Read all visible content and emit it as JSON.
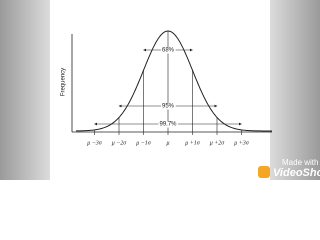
{
  "diagram": {
    "y_axis_label": "Frequency",
    "x_labels": [
      "μ −3σ",
      "μ −2σ",
      "μ −1σ",
      "μ",
      "μ +1σ",
      "μ +2σ",
      "μ +3σ"
    ],
    "intervals": [
      "68%",
      "95%",
      "99.7%"
    ]
  },
  "watermark": {
    "line1": "Made with",
    "line2": "VideoShow"
  }
}
